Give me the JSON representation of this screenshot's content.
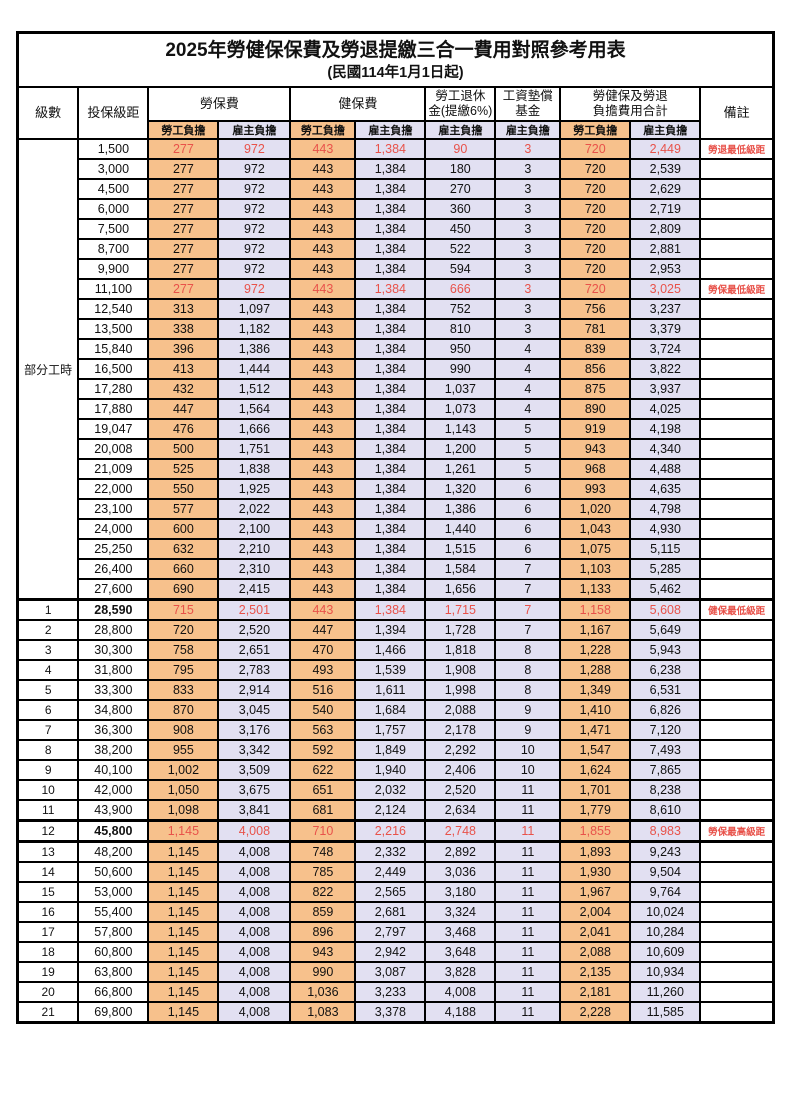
{
  "title": "2025年勞健保保費及勞退提繳三合一費用對照參考用表",
  "subtitle": "(民國114年1月1日起)",
  "header": {
    "level": "級數",
    "bracket": "投保級距",
    "note": "備註",
    "groups": [
      {
        "label": "勞保費",
        "label2": "",
        "subs": [
          "勞工負擔",
          "雇主負擔"
        ]
      },
      {
        "label": "健保費",
        "label2": "",
        "subs": [
          "勞工負擔",
          "雇主負擔"
        ]
      },
      {
        "label": "勞工退休",
        "label2": "金(提繳6%)",
        "subs": [
          "雇主負擔"
        ]
      },
      {
        "label": "工資墊償",
        "label2": "基金",
        "subs": [
          "雇主負擔"
        ]
      },
      {
        "label": "勞健保及勞退",
        "label2": "負擔費用合計",
        "subs": [
          "勞工負擔",
          "雇主負擔"
        ]
      }
    ]
  },
  "part_time_label": "部分工時",
  "part_time_row_count": 23,
  "colors": {
    "employee_bg": "#F7C18C",
    "employer_bg": "#E2E0F2",
    "highlight_text": "#E8524A",
    "border": "#000000"
  },
  "rows": [
    {
      "lv": "",
      "br": "1,500",
      "v": [
        "277",
        "972",
        "443",
        "1,384",
        "90",
        "3",
        "720",
        "2,449"
      ],
      "n": "勞退最低級距",
      "hl": 1,
      "b": 0
    },
    {
      "lv": "",
      "br": "3,000",
      "v": [
        "277",
        "972",
        "443",
        "1,384",
        "180",
        "3",
        "720",
        "2,539"
      ],
      "n": "",
      "hl": 0,
      "b": 0
    },
    {
      "lv": "",
      "br": "4,500",
      "v": [
        "277",
        "972",
        "443",
        "1,384",
        "270",
        "3",
        "720",
        "2,629"
      ],
      "n": "",
      "hl": 0,
      "b": 0
    },
    {
      "lv": "",
      "br": "6,000",
      "v": [
        "277",
        "972",
        "443",
        "1,384",
        "360",
        "3",
        "720",
        "2,719"
      ],
      "n": "",
      "hl": 0,
      "b": 0
    },
    {
      "lv": "",
      "br": "7,500",
      "v": [
        "277",
        "972",
        "443",
        "1,384",
        "450",
        "3",
        "720",
        "2,809"
      ],
      "n": "",
      "hl": 0,
      "b": 0
    },
    {
      "lv": "",
      "br": "8,700",
      "v": [
        "277",
        "972",
        "443",
        "1,384",
        "522",
        "3",
        "720",
        "2,881"
      ],
      "n": "",
      "hl": 0,
      "b": 0
    },
    {
      "lv": "",
      "br": "9,900",
      "v": [
        "277",
        "972",
        "443",
        "1,384",
        "594",
        "3",
        "720",
        "2,953"
      ],
      "n": "",
      "hl": 0,
      "b": 0
    },
    {
      "lv": "",
      "br": "11,100",
      "v": [
        "277",
        "972",
        "443",
        "1,384",
        "666",
        "3",
        "720",
        "3,025"
      ],
      "n": "勞保最低級距",
      "hl": 1,
      "b": 0
    },
    {
      "lv": "",
      "br": "12,540",
      "v": [
        "313",
        "1,097",
        "443",
        "1,384",
        "752",
        "3",
        "756",
        "3,237"
      ],
      "n": "",
      "hl": 0,
      "b": 0
    },
    {
      "lv": "",
      "br": "13,500",
      "v": [
        "338",
        "1,182",
        "443",
        "1,384",
        "810",
        "3",
        "781",
        "3,379"
      ],
      "n": "",
      "hl": 0,
      "b": 0
    },
    {
      "lv": "",
      "br": "15,840",
      "v": [
        "396",
        "1,386",
        "443",
        "1,384",
        "950",
        "4",
        "839",
        "3,724"
      ],
      "n": "",
      "hl": 0,
      "b": 0
    },
    {
      "lv": "",
      "br": "16,500",
      "v": [
        "413",
        "1,444",
        "443",
        "1,384",
        "990",
        "4",
        "856",
        "3,822"
      ],
      "n": "",
      "hl": 0,
      "b": 0
    },
    {
      "lv": "",
      "br": "17,280",
      "v": [
        "432",
        "1,512",
        "443",
        "1,384",
        "1,037",
        "4",
        "875",
        "3,937"
      ],
      "n": "",
      "hl": 0,
      "b": 0
    },
    {
      "lv": "",
      "br": "17,880",
      "v": [
        "447",
        "1,564",
        "443",
        "1,384",
        "1,073",
        "4",
        "890",
        "4,025"
      ],
      "n": "",
      "hl": 0,
      "b": 0
    },
    {
      "lv": "",
      "br": "19,047",
      "v": [
        "476",
        "1,666",
        "443",
        "1,384",
        "1,143",
        "5",
        "919",
        "4,198"
      ],
      "n": "",
      "hl": 0,
      "b": 0
    },
    {
      "lv": "",
      "br": "20,008",
      "v": [
        "500",
        "1,751",
        "443",
        "1,384",
        "1,200",
        "5",
        "943",
        "4,340"
      ],
      "n": "",
      "hl": 0,
      "b": 0
    },
    {
      "lv": "",
      "br": "21,009",
      "v": [
        "525",
        "1,838",
        "443",
        "1,384",
        "1,261",
        "5",
        "968",
        "4,488"
      ],
      "n": "",
      "hl": 0,
      "b": 0
    },
    {
      "lv": "",
      "br": "22,000",
      "v": [
        "550",
        "1,925",
        "443",
        "1,384",
        "1,320",
        "6",
        "993",
        "4,635"
      ],
      "n": "",
      "hl": 0,
      "b": 0
    },
    {
      "lv": "",
      "br": "23,100",
      "v": [
        "577",
        "2,022",
        "443",
        "1,384",
        "1,386",
        "6",
        "1,020",
        "4,798"
      ],
      "n": "",
      "hl": 0,
      "b": 0
    },
    {
      "lv": "",
      "br": "24,000",
      "v": [
        "600",
        "2,100",
        "443",
        "1,384",
        "1,440",
        "6",
        "1,043",
        "4,930"
      ],
      "n": "",
      "hl": 0,
      "b": 0
    },
    {
      "lv": "",
      "br": "25,250",
      "v": [
        "632",
        "2,210",
        "443",
        "1,384",
        "1,515",
        "6",
        "1,075",
        "5,115"
      ],
      "n": "",
      "hl": 0,
      "b": 0
    },
    {
      "lv": "",
      "br": "26,400",
      "v": [
        "660",
        "2,310",
        "443",
        "1,384",
        "1,584",
        "7",
        "1,103",
        "5,285"
      ],
      "n": "",
      "hl": 0,
      "b": 0
    },
    {
      "lv": "",
      "br": "27,600",
      "v": [
        "690",
        "2,415",
        "443",
        "1,384",
        "1,656",
        "7",
        "1,133",
        "5,462"
      ],
      "n": "",
      "hl": 0,
      "b": 0
    },
    {
      "lv": "1",
      "br": "28,590",
      "v": [
        "715",
        "2,501",
        "443",
        "1,384",
        "1,715",
        "7",
        "1,158",
        "5,608"
      ],
      "n": "健保最低級距",
      "hl": 1,
      "b": 1,
      "tt": 1
    },
    {
      "lv": "2",
      "br": "28,800",
      "v": [
        "720",
        "2,520",
        "447",
        "1,394",
        "1,728",
        "7",
        "1,167",
        "5,649"
      ],
      "n": "",
      "hl": 0,
      "b": 0
    },
    {
      "lv": "3",
      "br": "30,300",
      "v": [
        "758",
        "2,651",
        "470",
        "1,466",
        "1,818",
        "8",
        "1,228",
        "5,943"
      ],
      "n": "",
      "hl": 0,
      "b": 0
    },
    {
      "lv": "4",
      "br": "31,800",
      "v": [
        "795",
        "2,783",
        "493",
        "1,539",
        "1,908",
        "8",
        "1,288",
        "6,238"
      ],
      "n": "",
      "hl": 0,
      "b": 0
    },
    {
      "lv": "5",
      "br": "33,300",
      "v": [
        "833",
        "2,914",
        "516",
        "1,611",
        "1,998",
        "8",
        "1,349",
        "6,531"
      ],
      "n": "",
      "hl": 0,
      "b": 0
    },
    {
      "lv": "6",
      "br": "34,800",
      "v": [
        "870",
        "3,045",
        "540",
        "1,684",
        "2,088",
        "9",
        "1,410",
        "6,826"
      ],
      "n": "",
      "hl": 0,
      "b": 0
    },
    {
      "lv": "7",
      "br": "36,300",
      "v": [
        "908",
        "3,176",
        "563",
        "1,757",
        "2,178",
        "9",
        "1,471",
        "7,120"
      ],
      "n": "",
      "hl": 0,
      "b": 0
    },
    {
      "lv": "8",
      "br": "38,200",
      "v": [
        "955",
        "3,342",
        "592",
        "1,849",
        "2,292",
        "10",
        "1,547",
        "7,493"
      ],
      "n": "",
      "hl": 0,
      "b": 0
    },
    {
      "lv": "9",
      "br": "40,100",
      "v": [
        "1,002",
        "3,509",
        "622",
        "1,940",
        "2,406",
        "10",
        "1,624",
        "7,865"
      ],
      "n": "",
      "hl": 0,
      "b": 0
    },
    {
      "lv": "10",
      "br": "42,000",
      "v": [
        "1,050",
        "3,675",
        "651",
        "2,032",
        "2,520",
        "11",
        "1,701",
        "8,238"
      ],
      "n": "",
      "hl": 0,
      "b": 0
    },
    {
      "lv": "11",
      "br": "43,900",
      "v": [
        "1,098",
        "3,841",
        "681",
        "2,124",
        "2,634",
        "11",
        "1,779",
        "8,610"
      ],
      "n": "",
      "hl": 0,
      "b": 0
    },
    {
      "lv": "12",
      "br": "45,800",
      "v": [
        "1,145",
        "4,008",
        "710",
        "2,216",
        "2,748",
        "11",
        "1,855",
        "8,983"
      ],
      "n": "勞保最高級距",
      "hl": 1,
      "b": 1,
      "tt": 1,
      "tb": 1
    },
    {
      "lv": "13",
      "br": "48,200",
      "v": [
        "1,145",
        "4,008",
        "748",
        "2,332",
        "2,892",
        "11",
        "1,893",
        "9,243"
      ],
      "n": "",
      "hl": 0,
      "b": 0
    },
    {
      "lv": "14",
      "br": "50,600",
      "v": [
        "1,145",
        "4,008",
        "785",
        "2,449",
        "3,036",
        "11",
        "1,930",
        "9,504"
      ],
      "n": "",
      "hl": 0,
      "b": 0
    },
    {
      "lv": "15",
      "br": "53,000",
      "v": [
        "1,145",
        "4,008",
        "822",
        "2,565",
        "3,180",
        "11",
        "1,967",
        "9,764"
      ],
      "n": "",
      "hl": 0,
      "b": 0
    },
    {
      "lv": "16",
      "br": "55,400",
      "v": [
        "1,145",
        "4,008",
        "859",
        "2,681",
        "3,324",
        "11",
        "2,004",
        "10,024"
      ],
      "n": "",
      "hl": 0,
      "b": 0
    },
    {
      "lv": "17",
      "br": "57,800",
      "v": [
        "1,145",
        "4,008",
        "896",
        "2,797",
        "3,468",
        "11",
        "2,041",
        "10,284"
      ],
      "n": "",
      "hl": 0,
      "b": 0
    },
    {
      "lv": "18",
      "br": "60,800",
      "v": [
        "1,145",
        "4,008",
        "943",
        "2,942",
        "3,648",
        "11",
        "2,088",
        "10,609"
      ],
      "n": "",
      "hl": 0,
      "b": 0
    },
    {
      "lv": "19",
      "br": "63,800",
      "v": [
        "1,145",
        "4,008",
        "990",
        "3,087",
        "3,828",
        "11",
        "2,135",
        "10,934"
      ],
      "n": "",
      "hl": 0,
      "b": 0
    },
    {
      "lv": "20",
      "br": "66,800",
      "v": [
        "1,145",
        "4,008",
        "1,036",
        "3,233",
        "4,008",
        "11",
        "2,181",
        "11,260"
      ],
      "n": "",
      "hl": 0,
      "b": 0
    },
    {
      "lv": "21",
      "br": "69,800",
      "v": [
        "1,145",
        "4,008",
        "1,083",
        "3,378",
        "4,188",
        "11",
        "2,228",
        "11,585"
      ],
      "n": "",
      "hl": 0,
      "b": 0
    }
  ]
}
